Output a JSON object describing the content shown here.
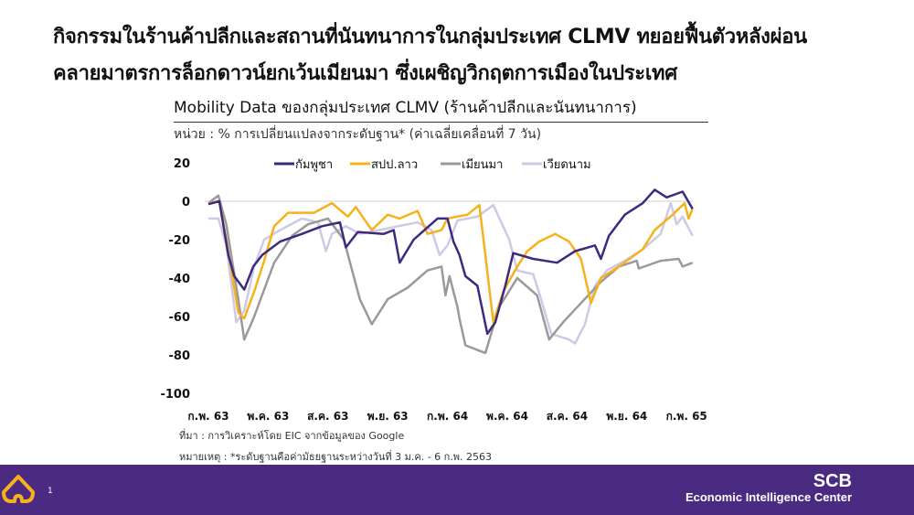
{
  "headline": {
    "line1": "กิจกรรมในร้านค้าปลีกและสถานที่นันทนาการในกลุ่มประเทศ CLMV ทยอยฟื้นตัวหลังผ่อน",
    "line2": "คลายมาตรการล็อกดาวน์ยกเว้นเมียนมา ซึ่งเผชิญวิกฤตการเมืองในประเทศ"
  },
  "chart_data": {
    "type": "line",
    "title": "Mobility Data ของกลุ่มประเทศ CLMV (ร้านค้าปลีกและนันทนาการ)",
    "unit": "หน่วย : % การเปลี่ยนแปลงจากระดับฐาน* (ค่าเฉลี่ยเคลื่อนที่ 7 วัน)",
    "xlabel": "",
    "ylabel": "",
    "x_unit": "months since Feb 2020",
    "ylim": [
      -100,
      20
    ],
    "yticks": [
      20,
      0,
      -20,
      -40,
      -60,
      -80,
      -100
    ],
    "xticks": [
      0,
      3,
      6,
      9,
      12,
      15,
      18,
      21,
      24
    ],
    "xtick_labels": [
      "ก.พ. 63",
      "พ.ค. 63",
      "ส.ค. 63",
      "พ.ย. 63",
      "ก.พ. 64",
      "พ.ค. 64",
      "ส.ค. 64",
      "พ.ย. 64",
      "ก.พ. 65"
    ],
    "legend_position": "top",
    "series": [
      {
        "name": "กัมพูชา",
        "color": "#3d2a7e",
        "x": [
          0,
          0.55,
          1.0,
          1.3,
          1.8,
          2.25,
          2.7,
          3.6,
          4.7,
          5.7,
          6.6,
          6.9,
          7.5,
          8.8,
          9.3,
          9.6,
          10.3,
          11.5,
          12.0,
          12.3,
          12.6,
          12.9,
          13.5,
          14.0,
          14.4,
          14.9,
          15.3,
          16.3,
          17.5,
          18.4,
          19.4,
          19.7,
          20.1,
          20.9,
          21.8,
          22.4,
          23.0,
          23.8,
          24.3
        ],
        "values": [
          -1.5,
          0,
          -28,
          -39,
          -46,
          -34,
          -28,
          -21,
          -17,
          -13,
          -11,
          -24,
          -16,
          -17,
          -15,
          -32,
          -20,
          -9,
          -9,
          -21,
          -28,
          -39,
          -44,
          -69,
          -63,
          -44,
          -27,
          -30,
          -32,
          -26,
          -23,
          -30,
          -18,
          -7,
          -1,
          6,
          2,
          5,
          -4
        ]
      },
      {
        "name": "สปป.ลาว",
        "color": "#f5b21c",
        "x": [
          0,
          0.55,
          0.9,
          1.5,
          1.8,
          2.3,
          2.8,
          3.3,
          4.0,
          5.3,
          6.2,
          7.0,
          7.4,
          8.2,
          9.0,
          9.6,
          10.5,
          11.0,
          11.7,
          12.0,
          13.0,
          13.6,
          13.9,
          14.3,
          14.8,
          15.5,
          16.0,
          16.6,
          17.4,
          18.1,
          18.7,
          19.2,
          19.7,
          20.6,
          21.8,
          22.4,
          23.3,
          23.9,
          24.1,
          24.3
        ],
        "values": [
          -1,
          0,
          -20,
          -58,
          -61,
          -47,
          -31,
          -13,
          -6,
          -6,
          -1,
          -8,
          -3,
          -15,
          -7,
          -9,
          -5,
          -17,
          -15,
          -9,
          -7,
          -2,
          -28,
          -63,
          -47,
          -34,
          -26,
          -21,
          -17,
          -21,
          -30,
          -53,
          -40,
          -34,
          -25,
          -15,
          -7,
          -1,
          -9,
          -4
        ]
      },
      {
        "name": "เมียนมา",
        "color": "#9a9a9a",
        "x": [
          0,
          0.5,
          0.9,
          1.5,
          1.8,
          2.3,
          3.3,
          4.2,
          5.0,
          6.0,
          6.8,
          7.6,
          8.2,
          9.0,
          10.0,
          11.0,
          11.7,
          11.9,
          12.1,
          12.5,
          12.6,
          12.9,
          13.9,
          14.6,
          15.5,
          16.5,
          17.1,
          17.8,
          18.7,
          19.7,
          20.6,
          21.5,
          21.6,
          22.7,
          23.6,
          23.8,
          24.3
        ],
        "values": [
          -1,
          3,
          -12,
          -51,
          -72,
          -60,
          -32,
          -18,
          -12,
          -9,
          -20,
          -51,
          -64,
          -51,
          -45,
          -36,
          -34,
          -49,
          -39,
          -55,
          -61,
          -75,
          -79,
          -55,
          -40,
          -49,
          -72,
          -63,
          -53,
          -42,
          -34,
          -31,
          -35,
          -31,
          -30,
          -34,
          -32
        ]
      },
      {
        "name": "เวียดนาม",
        "color": "#cfc8e6",
        "x": [
          0,
          0.5,
          0.9,
          1.4,
          1.8,
          2.3,
          2.8,
          3.6,
          4.7,
          5.5,
          5.9,
          6.2,
          6.9,
          7.6,
          8.6,
          9.5,
          10.5,
          11.2,
          11.6,
          12.0,
          12.5,
          13.5,
          14.3,
          15.1,
          15.5,
          16.3,
          16.7,
          17.2,
          18.1,
          18.4,
          18.9,
          19.4,
          20.0,
          20.9,
          21.8,
          22.7,
          23.2,
          23.5,
          23.8,
          24.3
        ],
        "values": [
          -9,
          -9,
          -23,
          -63,
          -57,
          -34,
          -20,
          -15,
          -9,
          -11,
          -26,
          -17,
          -13,
          -17,
          -15,
          -13,
          -11,
          -15,
          -28,
          -23,
          -10,
          -8,
          -2,
          -20,
          -36,
          -38,
          -51,
          -69,
          -72,
          -74,
          -64,
          -44,
          -36,
          -31,
          -25,
          -17,
          -1,
          -12,
          -8,
          -18
        ]
      }
    ]
  },
  "notes": {
    "source": "ที่มา : การวิเคราะห์โดย EIC จากข้อมูลของ Google",
    "remark": "หมายเหตุ : *ระดับฐานคือค่ามัธยฐานระหว่างวันที่ 3 ม.ค. - 6 ก.พ. 2563"
  },
  "footer": {
    "page_number": "1",
    "brand_name": "SCB",
    "brand_subtitle": "Economic Intelligence Center",
    "brand_color": "#4b2a82",
    "logo_color": "#f5b21c"
  }
}
